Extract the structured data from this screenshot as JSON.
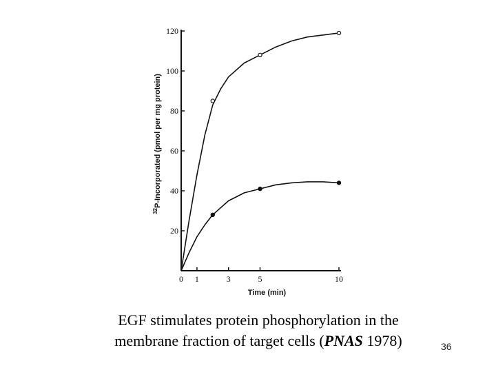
{
  "chart_data": {
    "type": "line",
    "title": "",
    "xlabel": "Time (min)",
    "ylabel_sup": "32",
    "ylabel": "P-Incorporated (pmol per mg protein)",
    "xlim": [
      0,
      10
    ],
    "ylim": [
      0,
      120
    ],
    "x_ticks": [
      0,
      1,
      3,
      5,
      10
    ],
    "y_ticks": [
      20,
      40,
      60,
      80,
      100,
      120
    ],
    "grid": false,
    "series": [
      {
        "name": "open-circles",
        "marker": "open-circle",
        "points": [
          [
            0,
            0
          ],
          [
            2,
            85
          ],
          [
            5,
            108
          ],
          [
            10,
            119
          ]
        ],
        "curve": [
          [
            0,
            0
          ],
          [
            0.5,
            25
          ],
          [
            1,
            48
          ],
          [
            1.5,
            68
          ],
          [
            2,
            83
          ],
          [
            2.5,
            91
          ],
          [
            3,
            97
          ],
          [
            4,
            104
          ],
          [
            5,
            108
          ],
          [
            6,
            112
          ],
          [
            7,
            115
          ],
          [
            8,
            117
          ],
          [
            9,
            118
          ],
          [
            10,
            119
          ]
        ]
      },
      {
        "name": "filled-circles",
        "marker": "filled-circle",
        "points": [
          [
            0,
            0
          ],
          [
            2,
            28
          ],
          [
            5,
            41
          ],
          [
            10,
            44
          ]
        ],
        "curve": [
          [
            0,
            0
          ],
          [
            0.5,
            9
          ],
          [
            1,
            17
          ],
          [
            1.5,
            23
          ],
          [
            2,
            28
          ],
          [
            3,
            35
          ],
          [
            4,
            39
          ],
          [
            5,
            41
          ],
          [
            6,
            43
          ],
          [
            7,
            44
          ],
          [
            8,
            44.5
          ],
          [
            9,
            44.5
          ],
          [
            10,
            44
          ]
        ]
      }
    ]
  },
  "caption": {
    "line1": "EGF stimulates protein phosphorylation in the",
    "line2_before": "membrane fraction of target cells (",
    "line2_italic": "PNAS",
    "line2_after": " 1978)"
  },
  "slide_number": "36"
}
